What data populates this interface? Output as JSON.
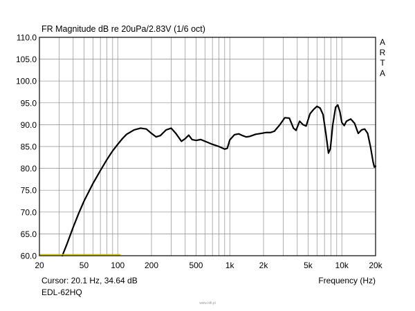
{
  "chart_data": {
    "type": "line",
    "title": "FR Magnitude dB re 20uPa/2.83V (1/6 oct)",
    "xlabel": "Frequency (Hz)",
    "ylabel": "",
    "xscale": "log",
    "xlim": [
      20,
      20000
    ],
    "ylim": [
      60,
      110
    ],
    "grid": true,
    "x_ticks": [
      20,
      50,
      100,
      200,
      500,
      1000,
      2000,
      5000,
      10000,
      20000
    ],
    "x_tick_labels": [
      "20",
      "50",
      "100",
      "200",
      "500",
      "1k",
      "2k",
      "5k",
      "10k",
      "20k"
    ],
    "y_ticks": [
      60,
      65,
      70,
      75,
      80,
      85,
      90,
      95,
      100,
      105,
      110
    ],
    "y_tick_labels": [
      "60.0",
      "65.0",
      "70.0",
      "75.0",
      "80.0",
      "85.0",
      "90.0",
      "95.0",
      "100.0",
      "105.0",
      "110.0"
    ],
    "branding": [
      "A",
      "R",
      "T",
      "A"
    ],
    "cursor_text": "Cursor: 20.1 Hz, 34.64 dB",
    "model": "EDL-62HQ",
    "watermark": "www.hifi.pl",
    "series": [
      {
        "name": "EDL-62HQ",
        "color": "#000000",
        "points": [
          [
            32,
            60.0
          ],
          [
            35,
            62.5
          ],
          [
            40,
            66.5
          ],
          [
            45,
            69.8
          ],
          [
            50,
            72.5
          ],
          [
            60,
            76.5
          ],
          [
            70,
            79.5
          ],
          [
            80,
            82.0
          ],
          [
            90,
            84.0
          ],
          [
            100,
            85.5
          ],
          [
            110,
            86.8
          ],
          [
            120,
            87.8
          ],
          [
            140,
            88.8
          ],
          [
            160,
            89.2
          ],
          [
            180,
            89.0
          ],
          [
            200,
            88.0
          ],
          [
            220,
            87.2
          ],
          [
            240,
            87.5
          ],
          [
            270,
            88.8
          ],
          [
            300,
            89.2
          ],
          [
            330,
            88.0
          ],
          [
            370,
            86.2
          ],
          [
            400,
            86.8
          ],
          [
            430,
            87.6
          ],
          [
            460,
            86.6
          ],
          [
            500,
            86.4
          ],
          [
            550,
            86.6
          ],
          [
            600,
            86.2
          ],
          [
            700,
            85.5
          ],
          [
            800,
            85.0
          ],
          [
            900,
            84.4
          ],
          [
            950,
            84.6
          ],
          [
            1000,
            86.5
          ],
          [
            1100,
            87.7
          ],
          [
            1200,
            87.9
          ],
          [
            1300,
            87.5
          ],
          [
            1400,
            87.2
          ],
          [
            1500,
            87.3
          ],
          [
            1700,
            87.8
          ],
          [
            1900,
            88.0
          ],
          [
            2100,
            88.2
          ],
          [
            2300,
            88.2
          ],
          [
            2500,
            88.5
          ],
          [
            2800,
            90.0
          ],
          [
            3100,
            91.6
          ],
          [
            3400,
            91.5
          ],
          [
            3700,
            89.2
          ],
          [
            3900,
            88.7
          ],
          [
            4200,
            90.8
          ],
          [
            4500,
            90.0
          ],
          [
            4800,
            89.7
          ],
          [
            5200,
            92.5
          ],
          [
            5600,
            93.5
          ],
          [
            6000,
            94.2
          ],
          [
            6400,
            93.8
          ],
          [
            6800,
            92.3
          ],
          [
            7200,
            88.0
          ],
          [
            7600,
            83.5
          ],
          [
            7900,
            84.5
          ],
          [
            8300,
            90.0
          ],
          [
            8800,
            94.0
          ],
          [
            9200,
            94.5
          ],
          [
            9600,
            93.0
          ],
          [
            10000,
            90.5
          ],
          [
            10500,
            89.8
          ],
          [
            11000,
            90.8
          ],
          [
            12000,
            91.3
          ],
          [
            13000,
            90.3
          ],
          [
            14000,
            88.0
          ],
          [
            15000,
            88.8
          ],
          [
            16000,
            89.0
          ],
          [
            17000,
            88.0
          ],
          [
            18000,
            85.0
          ],
          [
            19000,
            81.5
          ],
          [
            19500,
            80.3
          ],
          [
            20000,
            80.5
          ]
        ]
      },
      {
        "name": "low-frequency marker",
        "color": "#c8c300",
        "points": [
          [
            20,
            60.25
          ],
          [
            105,
            60.25
          ]
        ]
      }
    ]
  }
}
